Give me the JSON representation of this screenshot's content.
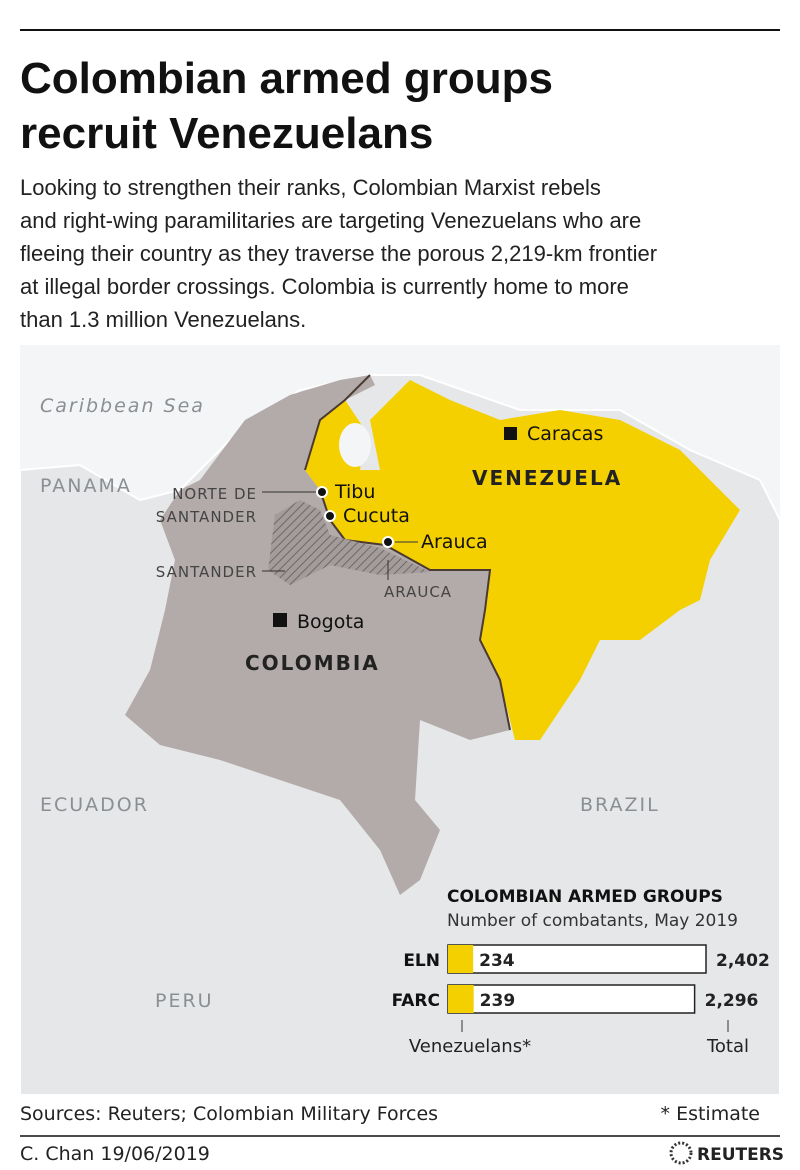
{
  "header": {
    "title": [
      "Colombian armed groups",
      "recruit Venezuelans"
    ],
    "description": [
      "Looking to strengthen their ranks, Colombian Marxist rebels",
      "and right-wing paramilitaries are targeting Venezuelans who are",
      "fleeing their country as they traverse the porous 2,219-km frontier",
      "at illegal border crossings. Colombia is currently home to more",
      "than 1.3 million Venezuelans."
    ]
  },
  "map": {
    "labels": {
      "sea": "Caribbean Sea",
      "panama": "PANAMA",
      "venezuela": "VENEZUELA",
      "colombia": "COLOMBIA",
      "ecuador": "ECUADOR",
      "brazil": "BRAZIL",
      "peru": "PERU",
      "norte": [
        "NORTE DE",
        "SANTANDER"
      ],
      "santander": "SANTANDER",
      "arauca_region": "ARAUCA"
    },
    "cities": [
      "Caracas",
      "Tibu",
      "Cucuta",
      "Arauca",
      "Bogota"
    ]
  },
  "chart_data": {
    "type": "bar",
    "title": "COLOMBIAN ARMED GROUPS",
    "subtitle": "Number of combatants, May 2019",
    "categories": [
      "ELN",
      "FARC"
    ],
    "series": [
      {
        "name": "Venezuelans*",
        "color": "#f5d000",
        "values": [
          234,
          239
        ]
      },
      {
        "name": "Total",
        "color": "#ffffff",
        "values": [
          2402,
          2296
        ],
        "value_labels": [
          "2,402",
          "2,296"
        ]
      }
    ]
  },
  "footer": {
    "sources": "Sources: Reuters; Colombian Military Forces",
    "note": "* Estimate",
    "credit": "C. Chan 19/06/2019",
    "logo": "REUTERS"
  }
}
